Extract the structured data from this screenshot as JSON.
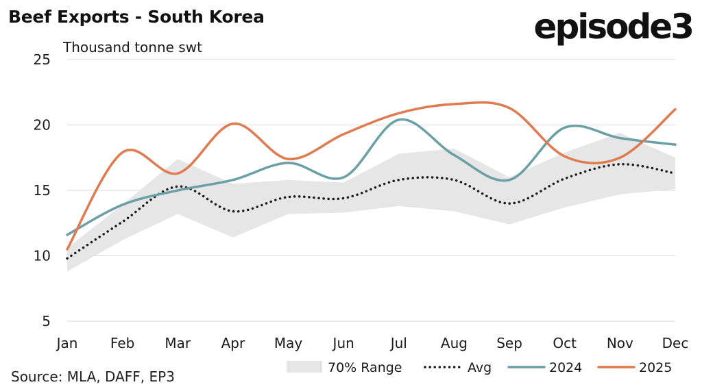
{
  "title": "Beef Exports - South Korea",
  "logo": "episode3",
  "source": "Source: MLA, DAFF, EP3",
  "colors": {
    "range": "#e6e6e6",
    "avg": "#1a1a1a",
    "s2024": "#6a9fa5",
    "s2025": "#e07a4f",
    "grid": "#d9d9d9"
  },
  "chart_data": {
    "type": "line",
    "ylabel": "Thousand tonne swt",
    "ylim": [
      5,
      25
    ],
    "yticks": [
      5,
      10,
      15,
      20,
      25
    ],
    "categories": [
      "Jan",
      "Feb",
      "Mar",
      "Apr",
      "May",
      "Jun",
      "Jul",
      "Aug",
      "Sep",
      "Oct",
      "Nov",
      "Dec"
    ],
    "grid": "horizontal",
    "legend": "bottom",
    "range": {
      "name": "70% Range",
      "low": [
        8.8,
        11.2,
        13.2,
        11.4,
        13.2,
        13.3,
        13.8,
        13.4,
        12.4,
        13.7,
        14.7,
        15.1
      ],
      "high": [
        10.6,
        13.9,
        17.4,
        15.5,
        15.8,
        15.6,
        17.8,
        18.2,
        16.0,
        17.9,
        19.4,
        17.5
      ]
    },
    "series": [
      {
        "name": "Avg",
        "style": "dotted",
        "values": [
          9.8,
          12.6,
          15.3,
          13.4,
          14.5,
          14.4,
          15.8,
          15.8,
          14.0,
          15.9,
          17.0,
          16.3
        ]
      },
      {
        "name": "2024",
        "style": "solid",
        "values": [
          11.6,
          13.9,
          15.0,
          15.8,
          17.1,
          16.0,
          20.4,
          17.7,
          15.8,
          19.8,
          19.0,
          18.5
        ]
      },
      {
        "name": "2025",
        "style": "solid",
        "values": [
          10.5,
          17.9,
          16.3,
          20.1,
          17.4,
          19.3,
          20.9,
          21.6,
          21.3,
          17.6,
          17.5,
          21.2
        ]
      }
    ]
  }
}
